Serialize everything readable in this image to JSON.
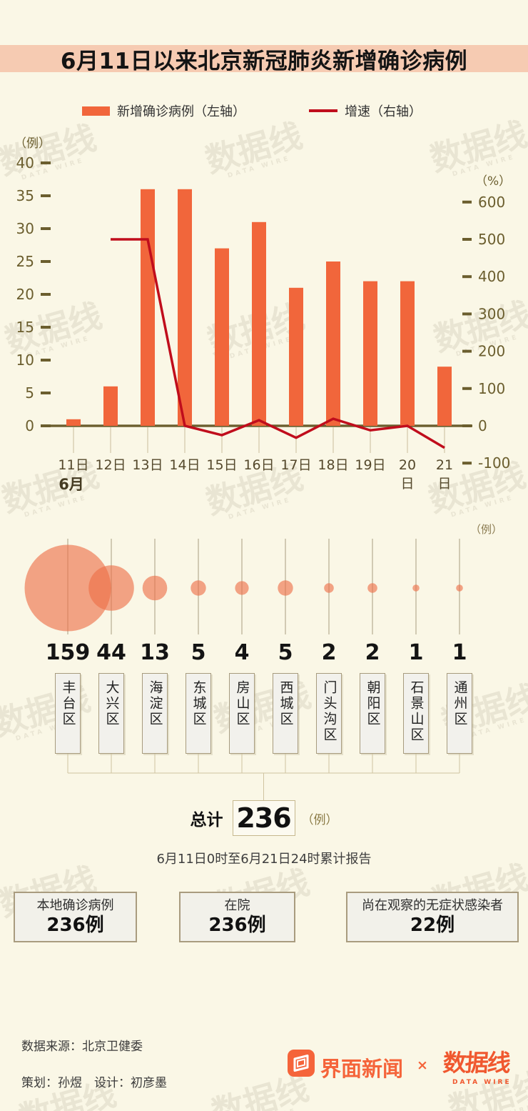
{
  "title": {
    "text": "6月11日以来北京新冠肺炎新增确诊病例"
  },
  "legend": {
    "bar_label": "新增确诊病例（左轴）",
    "line_label": "增速（右轴）"
  },
  "colors": {
    "background": "#FAF7E6",
    "title_band": "#F6CBB2",
    "bar": "#F1663B",
    "line": "#C00D1C",
    "axis": "#6B5E2E",
    "bubble": "#ED6E46",
    "brand_orange": "#F5643A"
  },
  "chart_data": [
    {
      "type": "bar+line",
      "title": "6月11日以来北京新冠肺炎新增确诊病例",
      "x_unit": "6月",
      "categories": [
        "11日",
        "12日",
        "13日",
        "14日",
        "15日",
        "16日",
        "17日",
        "18日",
        "19日",
        "20日",
        "21日"
      ],
      "series": [
        {
          "name": "新增确诊病例（左轴）",
          "type": "bar",
          "axis": "left",
          "color": "#F1663B",
          "values": [
            1,
            6,
            36,
            36,
            27,
            31,
            21,
            25,
            22,
            22,
            9
          ]
        },
        {
          "name": "增速（右轴）",
          "type": "line",
          "axis": "right",
          "color": "#C00D1C",
          "values": [
            null,
            500,
            500,
            0,
            -25,
            15,
            -32,
            19,
            -12,
            0,
            -59
          ]
        }
      ],
      "left_axis": {
        "label": "（例）",
        "min": 0,
        "max": 40,
        "step": 5
      },
      "right_axis": {
        "label": "（%）",
        "min": -100,
        "max": 600,
        "step": 100
      },
      "grid": false
    },
    {
      "type": "bubble",
      "unit_label": "（例）",
      "categories": [
        "丰台区",
        "大兴区",
        "海淀区",
        "东城区",
        "房山区",
        "西城区",
        "门头沟区",
        "朝阳区",
        "石景山区",
        "通州区"
      ],
      "values": [
        159,
        44,
        13,
        5,
        4,
        5,
        2,
        2,
        1,
        1
      ],
      "color": "#ED6E46"
    }
  ],
  "total": {
    "label": "总计",
    "value": "236",
    "unit": "（例）"
  },
  "note": "6月11日0时至6月21日24时累计报告",
  "summary_boxes": [
    {
      "label": "本地确诊病例",
      "value": "236例"
    },
    {
      "label": "在院",
      "value": "236例"
    },
    {
      "label": "尚在观察的无症状感染者",
      "value": "22例"
    }
  ],
  "footer": {
    "source": "数据来源：北京卫健委",
    "credits": "策划：孙煜　设计：初彦墨",
    "brand_jiemian": "界面新闻",
    "collab_mark": "×",
    "brand_datawire": "数据线",
    "brand_datawire_sub": "DATA WIRE"
  },
  "watermark": {
    "text": "数据线",
    "sub": "DATA WIRE"
  }
}
